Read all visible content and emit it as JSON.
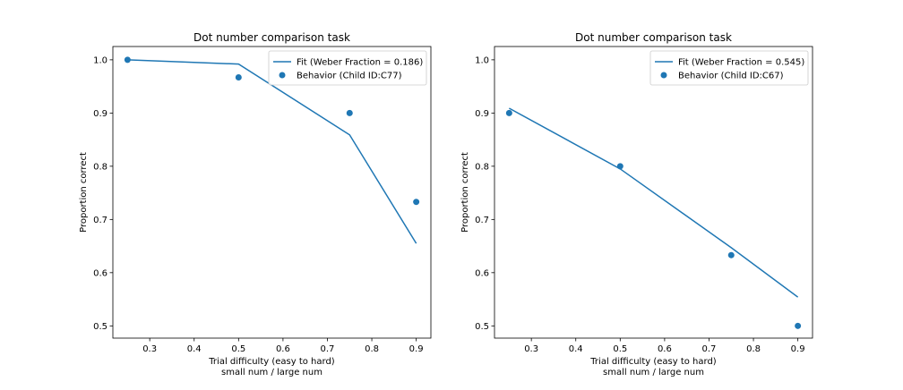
{
  "chart_data": [
    {
      "type": "line",
      "title": "Dot number comparison task",
      "xlabel": "Trial difficulty (easy to hard)",
      "xlabel2": "small num / large num",
      "ylabel": "Proportion correct",
      "xlim": [
        0.217,
        0.933
      ],
      "ylim": [
        0.477,
        1.025
      ],
      "xticks": [
        0.3,
        0.4,
        0.5,
        0.6,
        0.7,
        0.8,
        0.9
      ],
      "yticks": [
        0.5,
        0.6,
        0.7,
        0.8,
        0.9,
        1.0
      ],
      "xtick_labels": [
        "0.3",
        "0.4",
        "0.5",
        "0.6",
        "0.7",
        "0.8",
        "0.9"
      ],
      "ytick_labels": [
        "0.5",
        "0.6",
        "0.7",
        "0.8",
        "0.9",
        "1.0"
      ],
      "grid": false,
      "legend_position": "top-right",
      "color": "#1f77b4",
      "series": [
        {
          "name": "Fit (Weber Fraction = 0.186)",
          "kind": "line",
          "x": [
            0.25,
            0.5,
            0.75,
            0.9
          ],
          "y": [
            1.0,
            0.992,
            0.859,
            0.655
          ]
        },
        {
          "name": "Behavior (Child ID:C77)",
          "kind": "scatter",
          "x": [
            0.25,
            0.5,
            0.75,
            0.9
          ],
          "y": [
            1.0,
            0.967,
            0.9,
            0.733
          ]
        }
      ]
    },
    {
      "type": "line",
      "title": "Dot number comparison task",
      "xlabel": "Trial difficulty (easy to hard)",
      "xlabel2": "small num / large num",
      "ylabel": "Proportion correct",
      "xlim": [
        0.217,
        0.933
      ],
      "ylim": [
        0.477,
        1.025
      ],
      "xticks": [
        0.3,
        0.4,
        0.5,
        0.6,
        0.7,
        0.8,
        0.9
      ],
      "yticks": [
        0.5,
        0.6,
        0.7,
        0.8,
        0.9,
        1.0
      ],
      "xtick_labels": [
        "0.3",
        "0.4",
        "0.5",
        "0.6",
        "0.7",
        "0.8",
        "0.9"
      ],
      "ytick_labels": [
        "0.5",
        "0.6",
        "0.7",
        "0.8",
        "0.9",
        "1.0"
      ],
      "grid": false,
      "legend_position": "top-right",
      "color": "#1f77b4",
      "series": [
        {
          "name": "Fit (Weber Fraction = 0.545)",
          "kind": "line",
          "x": [
            0.25,
            0.5,
            0.75,
            0.9
          ],
          "y": [
            0.909,
            0.795,
            0.647,
            0.554
          ]
        },
        {
          "name": "Behavior (Child ID:C67)",
          "kind": "scatter",
          "x": [
            0.25,
            0.5,
            0.75,
            0.9
          ],
          "y": [
            0.9,
            0.8,
            0.633,
            0.5
          ]
        }
      ]
    }
  ]
}
